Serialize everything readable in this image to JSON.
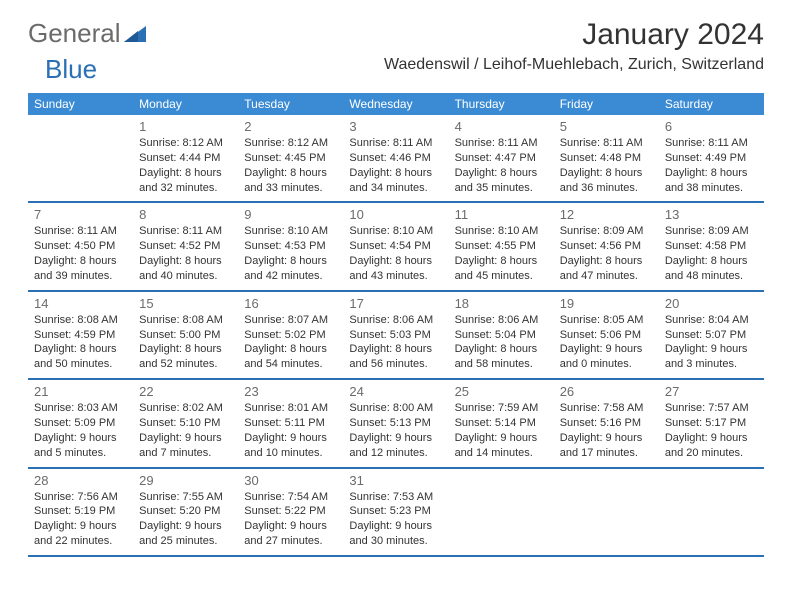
{
  "logo": {
    "part1": "General",
    "part2": "Blue"
  },
  "title": "January 2024",
  "location": "Waedenswil / Leihof-Muehlebach, Zurich, Switzerland",
  "colors": {
    "header_bg": "#3b8bd4",
    "header_text": "#ffffff",
    "week_border": "#2b6fb5",
    "daynum_color": "#6b6b6b",
    "text_color": "#333333",
    "logo_gray": "#6b6b6b",
    "logo_blue": "#2b6fb5",
    "bg": "#ffffff"
  },
  "typography": {
    "title_fontsize": 30,
    "location_fontsize": 16,
    "dow_fontsize": 12,
    "daynum_fontsize": 13,
    "info_fontsize": 11,
    "font_family": "Arial"
  },
  "daysOfWeek": [
    "Sunday",
    "Monday",
    "Tuesday",
    "Wednesday",
    "Thursday",
    "Friday",
    "Saturday"
  ],
  "weeks": [
    [
      {
        "num": "",
        "sunrise": "",
        "sunset": "",
        "daylight": ""
      },
      {
        "num": "1",
        "sunrise": "Sunrise: 8:12 AM",
        "sunset": "Sunset: 4:44 PM",
        "daylight": "Daylight: 8 hours and 32 minutes."
      },
      {
        "num": "2",
        "sunrise": "Sunrise: 8:12 AM",
        "sunset": "Sunset: 4:45 PM",
        "daylight": "Daylight: 8 hours and 33 minutes."
      },
      {
        "num": "3",
        "sunrise": "Sunrise: 8:11 AM",
        "sunset": "Sunset: 4:46 PM",
        "daylight": "Daylight: 8 hours and 34 minutes."
      },
      {
        "num": "4",
        "sunrise": "Sunrise: 8:11 AM",
        "sunset": "Sunset: 4:47 PM",
        "daylight": "Daylight: 8 hours and 35 minutes."
      },
      {
        "num": "5",
        "sunrise": "Sunrise: 8:11 AM",
        "sunset": "Sunset: 4:48 PM",
        "daylight": "Daylight: 8 hours and 36 minutes."
      },
      {
        "num": "6",
        "sunrise": "Sunrise: 8:11 AM",
        "sunset": "Sunset: 4:49 PM",
        "daylight": "Daylight: 8 hours and 38 minutes."
      }
    ],
    [
      {
        "num": "7",
        "sunrise": "Sunrise: 8:11 AM",
        "sunset": "Sunset: 4:50 PM",
        "daylight": "Daylight: 8 hours and 39 minutes."
      },
      {
        "num": "8",
        "sunrise": "Sunrise: 8:11 AM",
        "sunset": "Sunset: 4:52 PM",
        "daylight": "Daylight: 8 hours and 40 minutes."
      },
      {
        "num": "9",
        "sunrise": "Sunrise: 8:10 AM",
        "sunset": "Sunset: 4:53 PM",
        "daylight": "Daylight: 8 hours and 42 minutes."
      },
      {
        "num": "10",
        "sunrise": "Sunrise: 8:10 AM",
        "sunset": "Sunset: 4:54 PM",
        "daylight": "Daylight: 8 hours and 43 minutes."
      },
      {
        "num": "11",
        "sunrise": "Sunrise: 8:10 AM",
        "sunset": "Sunset: 4:55 PM",
        "daylight": "Daylight: 8 hours and 45 minutes."
      },
      {
        "num": "12",
        "sunrise": "Sunrise: 8:09 AM",
        "sunset": "Sunset: 4:56 PM",
        "daylight": "Daylight: 8 hours and 47 minutes."
      },
      {
        "num": "13",
        "sunrise": "Sunrise: 8:09 AM",
        "sunset": "Sunset: 4:58 PM",
        "daylight": "Daylight: 8 hours and 48 minutes."
      }
    ],
    [
      {
        "num": "14",
        "sunrise": "Sunrise: 8:08 AM",
        "sunset": "Sunset: 4:59 PM",
        "daylight": "Daylight: 8 hours and 50 minutes."
      },
      {
        "num": "15",
        "sunrise": "Sunrise: 8:08 AM",
        "sunset": "Sunset: 5:00 PM",
        "daylight": "Daylight: 8 hours and 52 minutes."
      },
      {
        "num": "16",
        "sunrise": "Sunrise: 8:07 AM",
        "sunset": "Sunset: 5:02 PM",
        "daylight": "Daylight: 8 hours and 54 minutes."
      },
      {
        "num": "17",
        "sunrise": "Sunrise: 8:06 AM",
        "sunset": "Sunset: 5:03 PM",
        "daylight": "Daylight: 8 hours and 56 minutes."
      },
      {
        "num": "18",
        "sunrise": "Sunrise: 8:06 AM",
        "sunset": "Sunset: 5:04 PM",
        "daylight": "Daylight: 8 hours and 58 minutes."
      },
      {
        "num": "19",
        "sunrise": "Sunrise: 8:05 AM",
        "sunset": "Sunset: 5:06 PM",
        "daylight": "Daylight: 9 hours and 0 minutes."
      },
      {
        "num": "20",
        "sunrise": "Sunrise: 8:04 AM",
        "sunset": "Sunset: 5:07 PM",
        "daylight": "Daylight: 9 hours and 3 minutes."
      }
    ],
    [
      {
        "num": "21",
        "sunrise": "Sunrise: 8:03 AM",
        "sunset": "Sunset: 5:09 PM",
        "daylight": "Daylight: 9 hours and 5 minutes."
      },
      {
        "num": "22",
        "sunrise": "Sunrise: 8:02 AM",
        "sunset": "Sunset: 5:10 PM",
        "daylight": "Daylight: 9 hours and 7 minutes."
      },
      {
        "num": "23",
        "sunrise": "Sunrise: 8:01 AM",
        "sunset": "Sunset: 5:11 PM",
        "daylight": "Daylight: 9 hours and 10 minutes."
      },
      {
        "num": "24",
        "sunrise": "Sunrise: 8:00 AM",
        "sunset": "Sunset: 5:13 PM",
        "daylight": "Daylight: 9 hours and 12 minutes."
      },
      {
        "num": "25",
        "sunrise": "Sunrise: 7:59 AM",
        "sunset": "Sunset: 5:14 PM",
        "daylight": "Daylight: 9 hours and 14 minutes."
      },
      {
        "num": "26",
        "sunrise": "Sunrise: 7:58 AM",
        "sunset": "Sunset: 5:16 PM",
        "daylight": "Daylight: 9 hours and 17 minutes."
      },
      {
        "num": "27",
        "sunrise": "Sunrise: 7:57 AM",
        "sunset": "Sunset: 5:17 PM",
        "daylight": "Daylight: 9 hours and 20 minutes."
      }
    ],
    [
      {
        "num": "28",
        "sunrise": "Sunrise: 7:56 AM",
        "sunset": "Sunset: 5:19 PM",
        "daylight": "Daylight: 9 hours and 22 minutes."
      },
      {
        "num": "29",
        "sunrise": "Sunrise: 7:55 AM",
        "sunset": "Sunset: 5:20 PM",
        "daylight": "Daylight: 9 hours and 25 minutes."
      },
      {
        "num": "30",
        "sunrise": "Sunrise: 7:54 AM",
        "sunset": "Sunset: 5:22 PM",
        "daylight": "Daylight: 9 hours and 27 minutes."
      },
      {
        "num": "31",
        "sunrise": "Sunrise: 7:53 AM",
        "sunset": "Sunset: 5:23 PM",
        "daylight": "Daylight: 9 hours and 30 minutes."
      },
      {
        "num": "",
        "sunrise": "",
        "sunset": "",
        "daylight": ""
      },
      {
        "num": "",
        "sunrise": "",
        "sunset": "",
        "daylight": ""
      },
      {
        "num": "",
        "sunrise": "",
        "sunset": "",
        "daylight": ""
      }
    ]
  ]
}
